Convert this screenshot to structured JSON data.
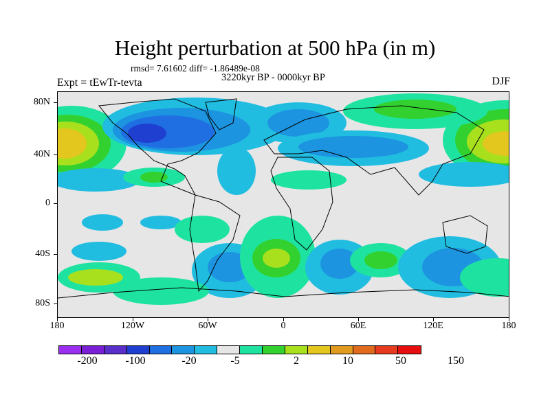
{
  "header": {
    "title": "Height perturbation at 500 hPa (in m)",
    "rmsd": "rmsd= 7.61602 diff= -1.86489e-08",
    "period": "3220kyr BP - 0000kyr BP",
    "experiment": "Expt = tEwTr-tevta",
    "season": "DJF"
  },
  "map": {
    "lat_labels": [
      "80N",
      "40N",
      "0",
      "40S",
      "80S"
    ],
    "lon_labels": [
      "180",
      "120W",
      "60W",
      "0",
      "60E",
      "120E",
      "180"
    ]
  },
  "colorbar": {
    "colors": [
      "#9b2ff0",
      "#7a1fd6",
      "#5a2ec9",
      "#1e3fcf",
      "#1f6fe3",
      "#1c94e0",
      "#21bde0",
      "#e6e6e6",
      "#1ee3a0",
      "#33d12f",
      "#a8e01e",
      "#e3c61e",
      "#e09a1e",
      "#e06a1e",
      "#e63b1e",
      "#e60e0e"
    ],
    "labels": [
      "-200",
      "-100",
      "-20",
      "-5",
      "2",
      "10",
      "50",
      "150"
    ]
  },
  "colors": {
    "neutral": "#e6e6e6",
    "light_blue": "#21bde0",
    "mid_blue": "#1c94e0",
    "blue": "#1f6fe3",
    "dark_blue": "#1e3fcf",
    "teal": "#1ee3a0",
    "green": "#33d12f",
    "yellow_green": "#a8e01e",
    "gold": "#e3c61e"
  }
}
